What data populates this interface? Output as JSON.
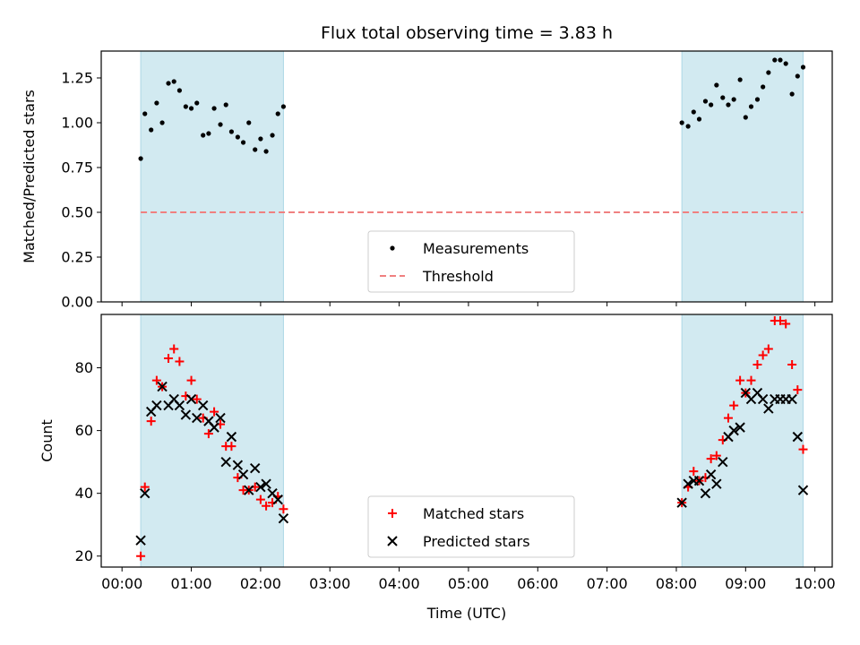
{
  "chart_data": {
    "type": "scatter",
    "title": "Flux total observing time = 3.83 h",
    "xlabel": "Time (UTC)",
    "x_unit": "hours UTC",
    "xlim": [
      -0.3,
      10.25
    ],
    "x_ticks": [
      {
        "value": 0,
        "label": "00:00"
      },
      {
        "value": 1,
        "label": "01:00"
      },
      {
        "value": 2,
        "label": "02:00"
      },
      {
        "value": 3,
        "label": "03:00"
      },
      {
        "value": 4,
        "label": "04:00"
      },
      {
        "value": 5,
        "label": "05:00"
      },
      {
        "value": 6,
        "label": "06:00"
      },
      {
        "value": 7,
        "label": "07:00"
      },
      {
        "value": 8,
        "label": "08:00"
      },
      {
        "value": 9,
        "label": "09:00"
      },
      {
        "value": 10,
        "label": "10:00"
      }
    ],
    "observing_windows": [
      [
        0.27,
        2.33
      ],
      [
        8.08,
        9.83
      ]
    ],
    "window_color": "#add8e6",
    "panels": [
      {
        "ylabel": "Matched/Predicted stars",
        "ylim": [
          0.0,
          1.4
        ],
        "y_ticks": [
          {
            "value": 0.0,
            "label": "0.00"
          },
          {
            "value": 0.25,
            "label": "0.25"
          },
          {
            "value": 0.5,
            "label": "0.50"
          },
          {
            "value": 0.75,
            "label": "0.75"
          },
          {
            "value": 1.0,
            "label": "1.00"
          },
          {
            "value": 1.25,
            "label": "1.25"
          }
        ],
        "legend": {
          "placement": "lower-center",
          "entries": [
            {
              "label": "Measurements",
              "marker": "dot",
              "color": "#000000"
            },
            {
              "label": "Threshold",
              "marker": "dashed-line",
              "color": "#f08080"
            }
          ]
        },
        "threshold": {
          "y": 0.5,
          "x_range": [
            0.27,
            9.83
          ],
          "color": "#f08080"
        },
        "series": [
          {
            "name": "Measurements",
            "marker": "dot",
            "color": "#000000",
            "x": [
              0.27,
              0.33,
              0.42,
              0.5,
              0.58,
              0.67,
              0.75,
              0.83,
              0.92,
              1.0,
              1.08,
              1.17,
              1.25,
              1.33,
              1.42,
              1.5,
              1.58,
              1.67,
              1.75,
              1.83,
              1.92,
              2.0,
              2.08,
              2.17,
              2.25,
              2.33,
              8.08,
              8.17,
              8.25,
              8.33,
              8.42,
              8.5,
              8.58,
              8.67,
              8.75,
              8.83,
              8.92,
              9.0,
              9.08,
              9.17,
              9.25,
              9.33,
              9.42,
              9.5,
              9.58,
              9.67,
              9.75,
              9.83
            ],
            "y": [
              0.8,
              1.05,
              0.96,
              1.11,
              1.0,
              1.22,
              1.23,
              1.18,
              1.09,
              1.08,
              1.11,
              0.93,
              0.94,
              1.08,
              0.99,
              1.1,
              0.95,
              0.92,
              0.89,
              1.0,
              0.85,
              0.91,
              0.84,
              0.93,
              1.05,
              1.09,
              1.0,
              0.98,
              1.06,
              1.02,
              1.12,
              1.1,
              1.21,
              1.14,
              1.1,
              1.13,
              1.24,
              1.03,
              1.09,
              1.13,
              1.2,
              1.28,
              1.35,
              1.35,
              1.33,
              1.16,
              1.26,
              1.31
            ]
          }
        ]
      },
      {
        "ylabel": "Count",
        "ylim": [
          16.5,
          97
        ],
        "y_ticks": [
          {
            "value": 20,
            "label": "20"
          },
          {
            "value": 40,
            "label": "40"
          },
          {
            "value": 60,
            "label": "60"
          },
          {
            "value": 80,
            "label": "80"
          }
        ],
        "legend": {
          "placement": "lower-center",
          "entries": [
            {
              "label": "Matched stars",
              "marker": "plus",
              "color": "#ff0000"
            },
            {
              "label": "Predicted stars",
              "marker": "x",
              "color": "#000000"
            }
          ]
        },
        "series": [
          {
            "name": "Matched stars",
            "marker": "plus",
            "color": "#ff0000",
            "x": [
              0.27,
              0.33,
              0.42,
              0.5,
              0.58,
              0.67,
              0.75,
              0.83,
              0.92,
              1.0,
              1.08,
              1.17,
              1.25,
              1.33,
              1.42,
              1.5,
              1.58,
              1.67,
              1.75,
              1.83,
              1.92,
              2.0,
              2.08,
              2.17,
              2.25,
              2.33,
              8.08,
              8.17,
              8.25,
              8.33,
              8.42,
              8.5,
              8.58,
              8.67,
              8.75,
              8.83,
              8.92,
              9.0,
              9.08,
              9.17,
              9.25,
              9.33,
              9.42,
              9.5,
              9.58,
              9.67,
              9.75,
              9.83
            ],
            "y": [
              20,
              42,
              63,
              76,
              74,
              83,
              86,
              82,
              71,
              76,
              70,
              64,
              59,
              66,
              62,
              55,
              55,
              45,
              41,
              41,
              42,
              38,
              36,
              37,
              39,
              35,
              37,
              42,
              47,
              44,
              45,
              51,
              52,
              57,
              64,
              68,
              76,
              72,
              76,
              81,
              84,
              86,
              95,
              95,
              94,
              81,
              73,
              54
            ]
          },
          {
            "name": "Predicted stars",
            "marker": "x",
            "color": "#000000",
            "x": [
              0.27,
              0.33,
              0.42,
              0.5,
              0.58,
              0.67,
              0.75,
              0.83,
              0.92,
              1.0,
              1.08,
              1.17,
              1.25,
              1.33,
              1.42,
              1.5,
              1.58,
              1.67,
              1.75,
              1.83,
              1.92,
              2.0,
              2.08,
              2.17,
              2.25,
              2.33,
              8.08,
              8.17,
              8.25,
              8.33,
              8.42,
              8.5,
              8.58,
              8.67,
              8.75,
              8.83,
              8.92,
              9.0,
              9.08,
              9.17,
              9.25,
              9.33,
              9.42,
              9.5,
              9.58,
              9.67,
              9.75,
              9.83
            ],
            "y": [
              25,
              40,
              66,
              68,
              74,
              68,
              70,
              68,
              65,
              70,
              64,
              68,
              63,
              61,
              64,
              50,
              58,
              49,
              46,
              41,
              48,
              42,
              43,
              40,
              38,
              32,
              37,
              43,
              44,
              44,
              40,
              46,
              43,
              50,
              58,
              60,
              61,
              72,
              70,
              72,
              70,
              67,
              70,
              70,
              70,
              70,
              58,
              41
            ]
          }
        ]
      }
    ]
  }
}
